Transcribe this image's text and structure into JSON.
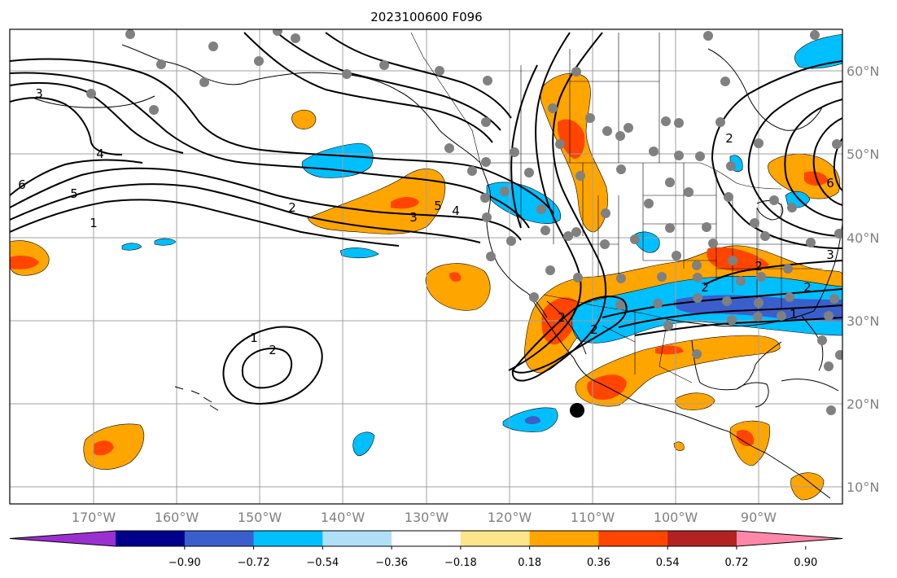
{
  "title": "2023100600 F096",
  "x_axis": {
    "tick_labels": [
      "170°W",
      "160°W",
      "150°W",
      "140°W",
      "130°W",
      "120°W",
      "110°W",
      "100°W",
      "90°W"
    ]
  },
  "y_axis": {
    "tick_labels": [
      "10°N",
      "20°N",
      "30°N",
      "40°N",
      "50°N",
      "60°N"
    ]
  },
  "colorbar": {
    "tick_labels": [
      "−0.90",
      "−0.72",
      "−0.54",
      "−0.36",
      "−0.18",
      "0.18",
      "0.36",
      "0.54",
      "0.72",
      "0.90"
    ],
    "colors": [
      "#9b30d0",
      "#00008b",
      "#3a5fcd",
      "#00bfff",
      "#b0e0f8",
      "#ffffff",
      "#fce58a",
      "#ffa500",
      "#ff4500",
      "#b22222",
      "#ff88aa"
    ]
  },
  "contour_labels": [
    {
      "text": "3"
    },
    {
      "text": "4"
    },
    {
      "text": "6"
    },
    {
      "text": "5"
    },
    {
      "text": "1"
    },
    {
      "text": "2"
    },
    {
      "text": "3"
    },
    {
      "text": "5"
    },
    {
      "text": "4"
    },
    {
      "text": "1"
    },
    {
      "text": "2"
    },
    {
      "text": "2"
    },
    {
      "text": "6"
    },
    {
      "text": "3"
    },
    {
      "text": "2"
    },
    {
      "text": "2"
    },
    {
      "text": "2"
    },
    {
      "text": "1"
    },
    {
      "text": "2"
    },
    {
      "text": "2"
    }
  ],
  "colors": {
    "grid": "#a0a0a0",
    "station_marker": "#808080",
    "highlight_marker": "#000000",
    "contour": "#000000"
  }
}
